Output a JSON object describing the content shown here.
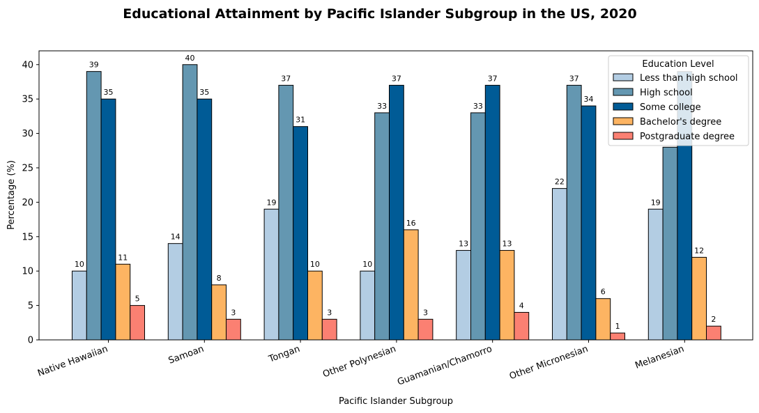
{
  "chart_data": {
    "type": "bar",
    "title": "Educational Attainment by Pacific Islander Subgroup in the US, 2020",
    "xlabel": "Pacific Islander Subgroup",
    "ylabel": "Percentage (%)",
    "ylim": [
      0,
      42
    ],
    "yticks": [
      0,
      5,
      10,
      15,
      20,
      25,
      30,
      35,
      40
    ],
    "grid": false,
    "legend_title": "Education Level",
    "legend_position": "top-right",
    "categories": [
      "Native Hawaiian",
      "Samoan",
      "Tongan",
      "Other Polynesian",
      "Guamanian/Chamorro",
      "Other Micronesian",
      "Melanesian"
    ],
    "series": [
      {
        "name": "Less than high school",
        "color": "#b3cde3",
        "values": [
          10,
          14,
          19,
          10,
          13,
          22,
          19
        ],
        "labels": [
          "10",
          "14",
          "19",
          "10",
          "13",
          "22",
          "19"
        ]
      },
      {
        "name": "High school",
        "color": "#6497b1",
        "values": [
          39,
          40,
          37,
          33,
          33,
          37,
          28
        ],
        "labels": [
          "39",
          "40",
          "37",
          "33",
          "33",
          "37",
          ""
        ]
      },
      {
        "name": "Some college",
        "color": "#005b96",
        "values": [
          35,
          35,
          31,
          37,
          37,
          34,
          39
        ],
        "labels": [
          "35",
          "35",
          "31",
          "37",
          "37",
          "34",
          ""
        ]
      },
      {
        "name": "Bachelor's degree",
        "color": "#fdb462",
        "values": [
          11,
          8,
          10,
          16,
          13,
          6,
          12
        ],
        "labels": [
          "11",
          "8",
          "10",
          "16",
          "13",
          "6",
          "12"
        ]
      },
      {
        "name": "Postgraduate degree",
        "color": "#fb8072",
        "values": [
          5,
          3,
          3,
          3,
          4,
          1,
          2
        ],
        "labels": [
          "5",
          "3",
          "3",
          "3",
          "4",
          "1",
          "2"
        ]
      }
    ]
  }
}
